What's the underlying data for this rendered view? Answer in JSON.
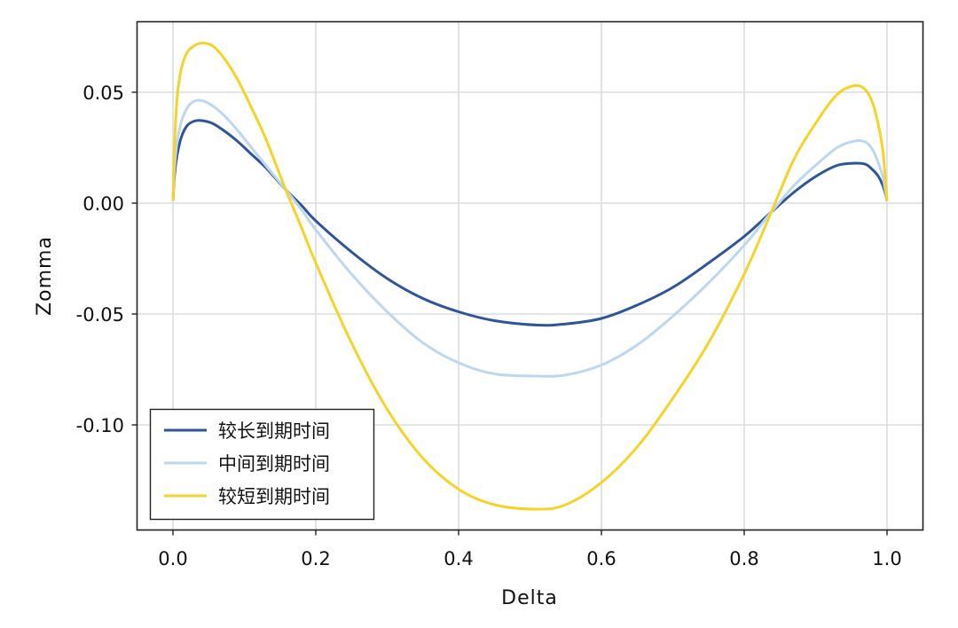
{
  "chart_data": {
    "type": "line",
    "title": "",
    "xlabel": "Delta",
    "ylabel": "Zomma",
    "xlim": [
      -0.05,
      1.05
    ],
    "ylim": [
      -0.148,
      0.082
    ],
    "xticks": [
      0.0,
      0.2,
      0.4,
      0.6,
      0.8,
      1.0
    ],
    "xtick_labels": [
      "0.0",
      "0.2",
      "0.4",
      "0.6",
      "0.8",
      "1.0"
    ],
    "yticks": [
      0.05,
      0.0,
      -0.05,
      -0.1
    ],
    "ytick_labels": [
      "0.05",
      "0.00",
      "-0.05",
      "-0.10"
    ],
    "grid": true,
    "legend_position": "lower left",
    "x": [
      0.0,
      0.002,
      0.006,
      0.012,
      0.02,
      0.03,
      0.041,
      0.055,
      0.07,
      0.09,
      0.11,
      0.13,
      0.158,
      0.18,
      0.2,
      0.25,
      0.3,
      0.35,
      0.4,
      0.45,
      0.51,
      0.55,
      0.6,
      0.65,
      0.7,
      0.75,
      0.8,
      0.838,
      0.87,
      0.9,
      0.93,
      0.955,
      0.97,
      0.98,
      0.988,
      0.994,
      0.998,
      1.0
    ],
    "series": [
      {
        "name": "较长到期时间",
        "color": "#2f5597",
        "values": [
          0.001,
          0.012,
          0.022,
          0.03,
          0.035,
          0.037,
          0.0372,
          0.036,
          0.033,
          0.028,
          0.022,
          0.016,
          0.006,
          -0.001,
          -0.008,
          -0.022,
          -0.034,
          -0.043,
          -0.049,
          -0.053,
          -0.055,
          -0.0545,
          -0.052,
          -0.046,
          -0.038,
          -0.027,
          -0.015,
          -0.004,
          0.005,
          0.012,
          0.017,
          0.018,
          0.0175,
          0.015,
          0.012,
          0.008,
          0.004,
          0.001
        ]
      },
      {
        "name": "中间到期时间",
        "color": "#bdd7ee",
        "values": [
          0.001,
          0.015,
          0.028,
          0.037,
          0.043,
          0.046,
          0.0462,
          0.044,
          0.04,
          0.033,
          0.025,
          0.017,
          0.006,
          -0.003,
          -0.012,
          -0.032,
          -0.049,
          -0.063,
          -0.072,
          -0.077,
          -0.078,
          -0.0775,
          -0.073,
          -0.064,
          -0.051,
          -0.036,
          -0.019,
          -0.004,
          0.008,
          0.017,
          0.025,
          0.028,
          0.0275,
          0.024,
          0.018,
          0.012,
          0.005,
          0.001
        ]
      },
      {
        "name": "较短到期时间",
        "color": "#f5d327",
        "values": [
          0.001,
          0.025,
          0.048,
          0.061,
          0.068,
          0.071,
          0.0722,
          0.071,
          0.066,
          0.056,
          0.043,
          0.029,
          0.006,
          -0.011,
          -0.027,
          -0.063,
          -0.093,
          -0.115,
          -0.129,
          -0.136,
          -0.138,
          -0.136,
          -0.126,
          -0.11,
          -0.088,
          -0.063,
          -0.032,
          -0.004,
          0.02,
          0.036,
          0.049,
          0.053,
          0.051,
          0.045,
          0.035,
          0.024,
          0.01,
          0.001
        ]
      }
    ]
  },
  "legend": {
    "items": [
      {
        "label": "较长到期时间",
        "color": "#2f5597"
      },
      {
        "label": "中间到期时间",
        "color": "#bdd7ee"
      },
      {
        "label": "较短到期时间",
        "color": "#f5d327"
      }
    ]
  },
  "style": {
    "grid_color": "#d9dde2",
    "axis_color": "#222222",
    "background": "#ffffff"
  }
}
